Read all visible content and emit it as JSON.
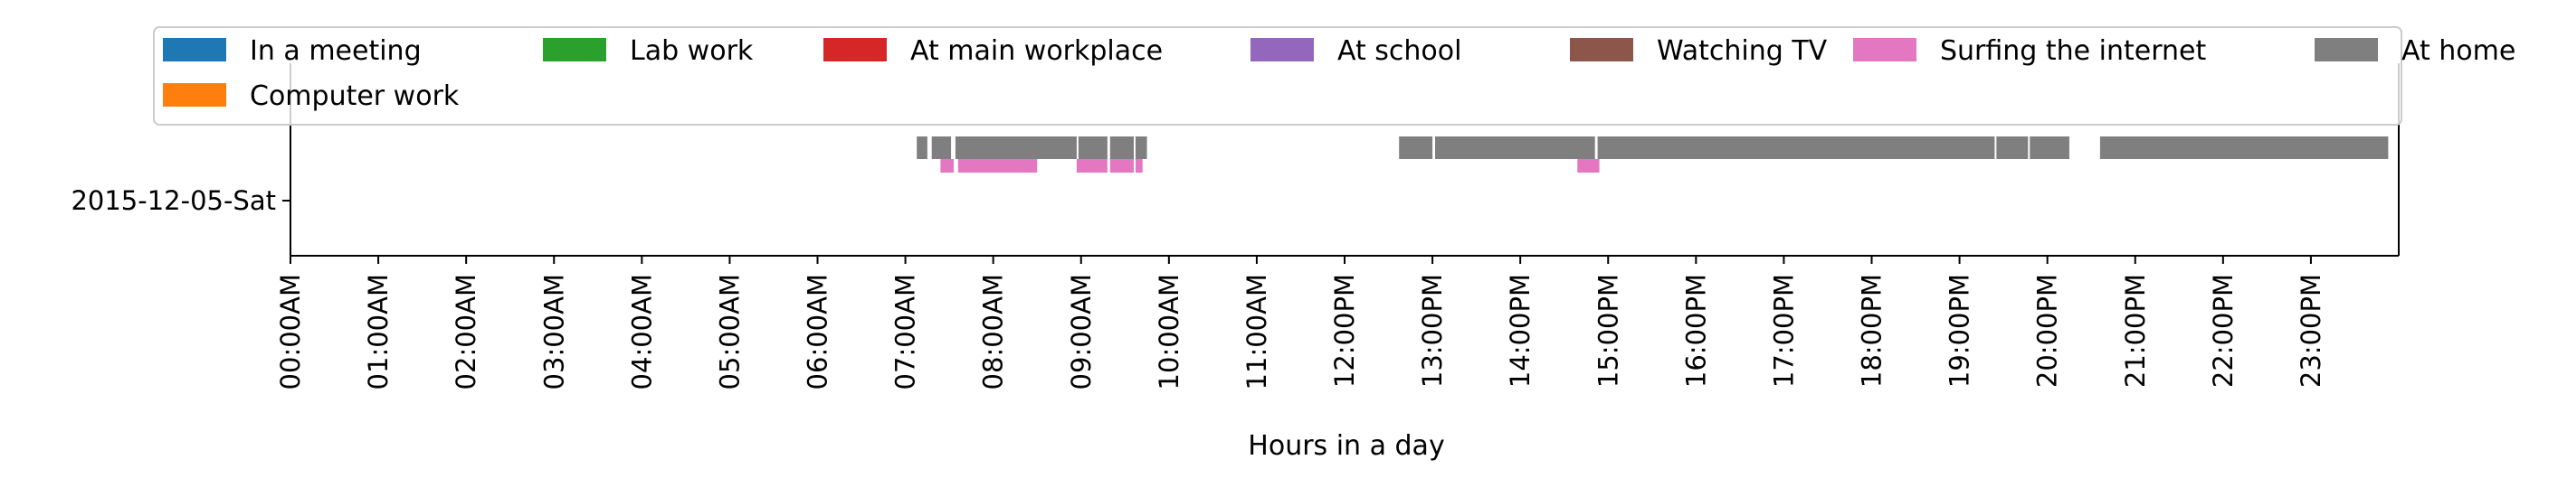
{
  "chart_data": {
    "type": "timeline",
    "title": "",
    "xlabel": "Hours in a day",
    "ylabel": "",
    "xlim": [
      0,
      24
    ],
    "categories": [
      "2015-12-05-Sat"
    ],
    "xticks": [
      "00:00AM",
      "01:00AM",
      "02:00AM",
      "03:00AM",
      "04:00AM",
      "05:00AM",
      "06:00AM",
      "07:00AM",
      "08:00AM",
      "09:00AM",
      "10:00AM",
      "11:00AM",
      "12:00PM",
      "13:00PM",
      "14:00PM",
      "15:00PM",
      "16:00PM",
      "17:00PM",
      "18:00PM",
      "19:00PM",
      "20:00PM",
      "21:00PM",
      "22:00PM",
      "23:00PM"
    ],
    "grid": false,
    "legend_position": "top",
    "series": [
      {
        "name": "In a meeting",
        "color": "#1f77b4",
        "intervals": []
      },
      {
        "name": "Computer work",
        "color": "#ff7f0e",
        "intervals": []
      },
      {
        "name": "Lab work",
        "color": "#2ca02c",
        "intervals": []
      },
      {
        "name": "At main workplace",
        "color": "#d62728",
        "intervals": []
      },
      {
        "name": "At school",
        "color": "#9467bd",
        "intervals": []
      },
      {
        "name": "Watching TV",
        "color": "#8c564b",
        "intervals": []
      },
      {
        "name": "Surfing the internet",
        "color": "#e377c2",
        "intervals": [
          [
            7.4,
            7.55
          ],
          [
            7.6,
            8.5
          ],
          [
            8.95,
            9.3
          ],
          [
            9.33,
            9.6
          ],
          [
            9.62,
            9.7
          ],
          [
            14.65,
            14.9
          ]
        ]
      },
      {
        "name": "At home",
        "color": "#7f7f7f",
        "intervals": [
          [
            7.13,
            7.25
          ],
          [
            7.3,
            7.52
          ],
          [
            7.57,
            8.95
          ],
          [
            8.97,
            9.3
          ],
          [
            9.33,
            9.6
          ],
          [
            9.62,
            9.75
          ],
          [
            12.62,
            13.0
          ],
          [
            13.03,
            14.85
          ],
          [
            14.88,
            19.4
          ],
          [
            19.42,
            19.78
          ],
          [
            19.8,
            20.25
          ],
          [
            20.6,
            23.88
          ]
        ]
      }
    ]
  }
}
